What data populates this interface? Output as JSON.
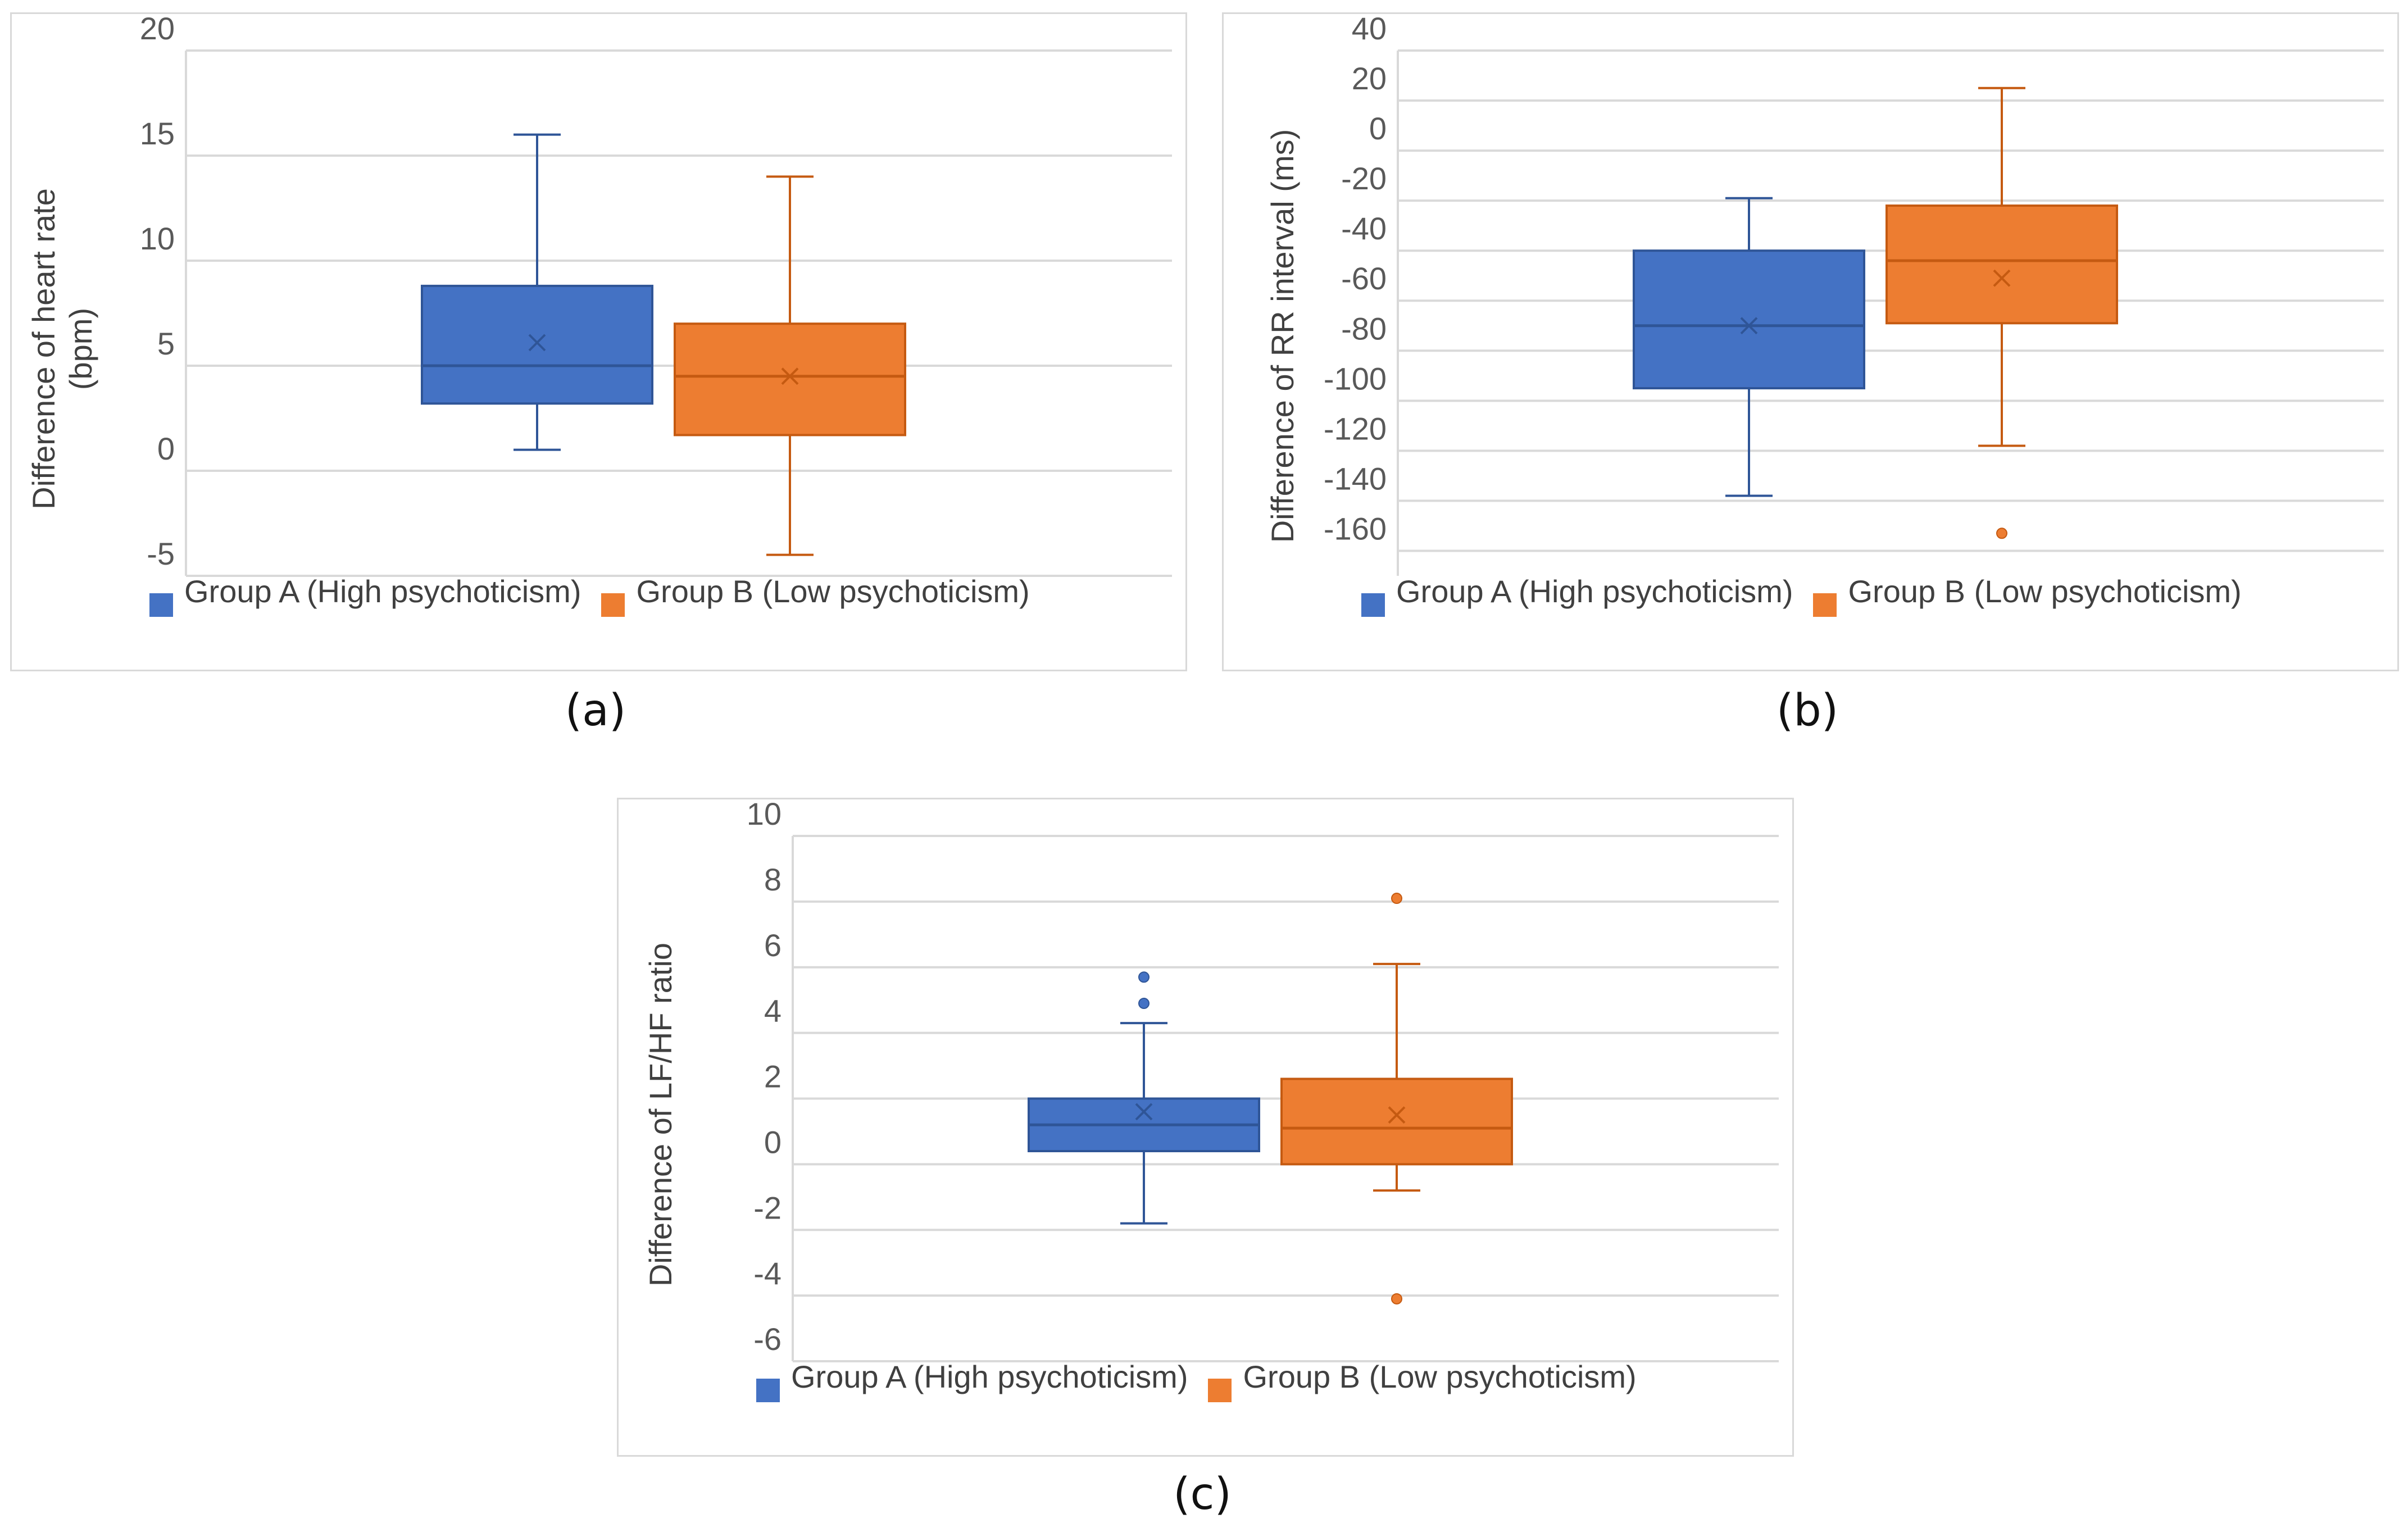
{
  "colors": {
    "groupA": "#4472C4",
    "groupA_dark": "#2F5597",
    "groupB": "#ED7D31",
    "groupB_dark": "#C55A11",
    "grid": "#d9d9d9",
    "text": "#595959"
  },
  "legend": {
    "groupA": "Group A (High psychoticism)",
    "groupB": "Group B (Low psychoticism)"
  },
  "chart_data": [
    {
      "type": "box",
      "caption": "(a)",
      "ylabel": "Difference of heart rate (bpm)",
      "ylabel_lines": [
        "Difference of heart rate",
        "(bpm)"
      ],
      "ylim": [
        -5,
        20
      ],
      "ticks": [
        20,
        15,
        10,
        5,
        0,
        -5
      ],
      "series": [
        {
          "name": "Group A (High psychoticism)",
          "min": 1,
          "q1": 3.2,
          "median": 5,
          "q3": 8.8,
          "max": 16,
          "mean": 6.1,
          "outliers": []
        },
        {
          "name": "Group B (Low psychoticism)",
          "min": -4,
          "q1": 1.7,
          "median": 4.5,
          "q3": 7,
          "max": 14,
          "mean": 4.5,
          "outliers": []
        }
      ]
    },
    {
      "type": "box",
      "caption": "(b)",
      "ylabel": "Difference of RR interval (ms)",
      "ylabel_lines": [
        "Difference of RR interval (ms)"
      ],
      "ylim": [
        -170,
        40
      ],
      "ticks": [
        40,
        20,
        0,
        -20,
        -40,
        -60,
        -80,
        -100,
        -120,
        -140,
        -160
      ],
      "series": [
        {
          "name": "Group A (High psychoticism)",
          "min": -138,
          "q1": -95,
          "median": -70,
          "q3": -40,
          "max": -19,
          "mean": -70,
          "outliers": []
        },
        {
          "name": "Group B (Low psychoticism)",
          "min": -118,
          "q1": -69,
          "median": -44,
          "q3": -22,
          "max": 25,
          "mean": -51,
          "outliers": [
            -153
          ]
        }
      ]
    },
    {
      "type": "box",
      "caption": "(c)",
      "ylabel": "Difference of LF/HF ratio",
      "ylabel_lines": [
        "Difference of LF/HF ratio"
      ],
      "ylim": [
        -6,
        10
      ],
      "ticks": [
        10,
        8,
        6,
        4,
        2,
        0,
        -2,
        -4,
        -6
      ],
      "series": [
        {
          "name": "Group A (High psychoticism)",
          "min": -1.8,
          "q1": 0.4,
          "median": 1.2,
          "q3": 2,
          "max": 4.3,
          "mean": 1.6,
          "outliers": [
            4.9,
            5.7
          ]
        },
        {
          "name": "Group B (Low psychoticism)",
          "min": -0.8,
          "q1": 0,
          "median": 1.1,
          "q3": 2.6,
          "max": 6.1,
          "mean": 1.5,
          "outliers": [
            8.1,
            -4.1
          ]
        }
      ]
    }
  ]
}
